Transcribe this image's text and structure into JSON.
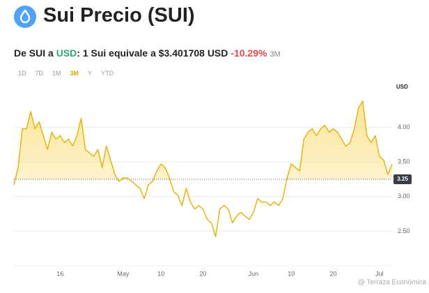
{
  "chart_data": {
    "type": "area",
    "title": "Sui Precio (SUI)",
    "subtitle": [
      "De SUI a",
      "USD",
      ": 1 Sui equivale a $3.401708 USD",
      "-10.29%",
      "3M"
    ],
    "ranges": [
      "1D",
      "7D",
      "1M",
      "3M",
      "Y",
      "YTD"
    ],
    "active_range": 3,
    "y_axis_label": "USD",
    "watermark": "@ Terraza Económica",
    "color": "#e8b40c",
    "reference_line": 3.25,
    "categories": [
      null,
      null,
      null,
      null,
      null,
      null,
      null,
      null,
      null,
      null,
      null,
      "16",
      null,
      null,
      null,
      null,
      null,
      null,
      null,
      null,
      null,
      null,
      null,
      null,
      null,
      null,
      "May",
      null,
      null,
      null,
      null,
      null,
      null,
      null,
      null,
      "10",
      null,
      null,
      null,
      null,
      null,
      null,
      null,
      null,
      null,
      "20",
      null,
      null,
      null,
      null,
      null,
      null,
      null,
      null,
      null,
      null,
      null,
      "Jun",
      null,
      null,
      null,
      null,
      null,
      null,
      null,
      null,
      "10",
      null,
      null,
      null,
      null,
      null,
      null,
      null,
      null,
      null,
      "20",
      null,
      null,
      null,
      null,
      null,
      null,
      null,
      null,
      null,
      null,
      "Jul",
      null,
      null,
      null
    ],
    "values": [
      3.17,
      3.42,
      3.98,
      3.98,
      4.23,
      3.98,
      4.08,
      3.88,
      3.68,
      3.93,
      3.83,
      3.88,
      3.78,
      3.83,
      3.73,
      3.88,
      4.13,
      3.68,
      3.63,
      3.58,
      3.68,
      3.42,
      3.73,
      3.53,
      3.32,
      3.22,
      3.27,
      3.27,
      3.22,
      3.17,
      3.12,
      2.97,
      3.17,
      3.22,
      3.37,
      3.47,
      3.42,
      3.27,
      3.07,
      3.02,
      2.87,
      3.12,
      2.92,
      2.82,
      2.87,
      2.82,
      2.67,
      2.62,
      2.42,
      2.82,
      2.87,
      2.82,
      2.62,
      2.72,
      2.77,
      2.72,
      2.67,
      2.77,
      2.97,
      2.92,
      2.92,
      2.87,
      2.92,
      2.87,
      2.97,
      3.27,
      3.47,
      3.42,
      3.37,
      3.83,
      3.93,
      3.98,
      3.88,
      3.98,
      4.03,
      3.93,
      3.98,
      3.93,
      3.83,
      3.73,
      3.78,
      3.98,
      4.28,
      4.38,
      3.88,
      3.78,
      3.88,
      3.58,
      3.53,
      3.32,
      3.47
    ],
    "ylim": [
      2.0,
      4.55
    ],
    "yticks": [
      {
        "value": 2.5,
        "label": "2.50"
      },
      {
        "value": 3,
        "label": "3.00"
      },
      {
        "value": 3.5,
        "label": "3.50"
      },
      {
        "value": 4,
        "label": "4.00"
      }
    ],
    "grid": true
  }
}
